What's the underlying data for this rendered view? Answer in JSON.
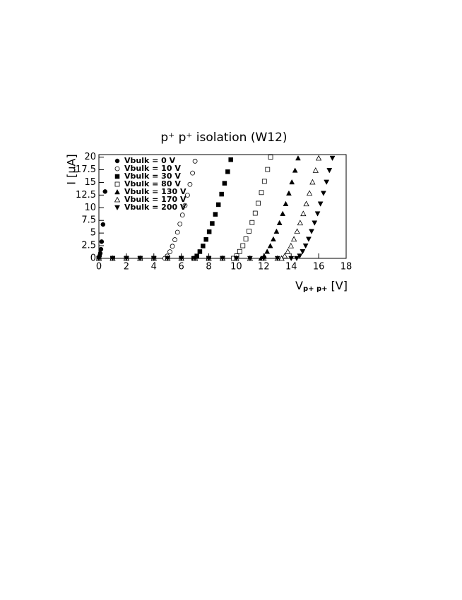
{
  "chart_data": {
    "type": "scatter",
    "title": "p⁺ p⁺ isolation (W12)",
    "xlabel": {
      "main": "V",
      "sub": "p+ p+",
      "unit": "[V]"
    },
    "ylabel": "I [μA]",
    "xlim": [
      0,
      18
    ],
    "ylim": [
      0,
      20.5
    ],
    "xticks": [
      0,
      2,
      4,
      6,
      8,
      10,
      12,
      14,
      16,
      18
    ],
    "yticks": [
      0,
      2.5,
      5,
      7.5,
      10,
      12.5,
      15,
      17.5,
      20
    ],
    "legend": "top-left",
    "series": [
      {
        "name": "Vbulk = 0 V",
        "marker": "circle",
        "color": "#000000",
        "x": [
          0,
          0.05,
          0.1,
          0.15,
          0.2,
          0.3,
          0.45
        ],
        "values": [
          0,
          0.5,
          1,
          1.8,
          3.3,
          6.7,
          13.2
        ]
      },
      {
        "name": "Vbulk = 10 V",
        "marker": "circle-open",
        "color": "#000000",
        "x": [
          0,
          1,
          2,
          3,
          4,
          4.8,
          4.98,
          5.17,
          5.35,
          5.53,
          5.72,
          5.9,
          6.08,
          6.27,
          6.45,
          6.63,
          6.82,
          7.0
        ],
        "values": [
          0,
          0,
          0,
          0,
          0,
          0,
          0.46,
          1.31,
          2.4,
          3.69,
          5.16,
          6.8,
          8.56,
          10.44,
          12.48,
          14.61,
          16.86,
          19.2
        ]
      },
      {
        "name": "Vbulk = 30 V",
        "marker": "square",
        "color": "#000000",
        "x": [
          0,
          1,
          2,
          3,
          4,
          5,
          6,
          6.9,
          7.13,
          7.35,
          7.58,
          7.8,
          8.03,
          8.25,
          8.48,
          8.7,
          8.93,
          9.15,
          9.38,
          9.6
        ],
        "values": [
          0,
          0,
          0,
          0,
          0,
          0,
          0,
          0,
          0.47,
          1.33,
          2.44,
          3.74,
          5.25,
          6.9,
          8.7,
          10.61,
          12.68,
          14.84,
          17.12,
          19.5
        ]
      },
      {
        "name": "Vbulk = 80 V",
        "marker": "square-open",
        "color": "#000000",
        "x": [
          0,
          1,
          2,
          3,
          4,
          5,
          6,
          7,
          8,
          9,
          9.8,
          10.03,
          10.25,
          10.48,
          10.7,
          10.93,
          11.15,
          11.38,
          11.6,
          11.83,
          12.05,
          12.28,
          12.5
        ],
        "values": [
          0,
          0,
          0,
          0,
          0,
          0,
          0,
          0,
          0,
          0,
          0,
          0.48,
          1.36,
          2.5,
          3.84,
          5.38,
          7.08,
          8.92,
          10.88,
          13,
          15.22,
          17.56,
          20
        ]
      },
      {
        "name": "Vbulk = 130 V",
        "marker": "triangle-up",
        "color": "#000000",
        "x": [
          0,
          1,
          2,
          3,
          4,
          5,
          6,
          7,
          8,
          9,
          10,
          11,
          11.8,
          12.03,
          12.25,
          12.48,
          12.7,
          12.93,
          13.15,
          13.38,
          13.6,
          13.83,
          14.05,
          14.28,
          14.5
        ],
        "values": [
          0,
          0,
          0,
          0,
          0,
          0,
          0,
          0,
          0,
          0,
          0,
          0,
          0,
          0.48,
          1.35,
          2.48,
          3.8,
          5.33,
          7.01,
          8.83,
          10.77,
          12.87,
          15.07,
          17.38,
          19.8
        ]
      },
      {
        "name": "Vbulk = 170 V",
        "marker": "triangle-up-open",
        "color": "#000000",
        "x": [
          0,
          1,
          2,
          3,
          4,
          5,
          6,
          7,
          8,
          9,
          10,
          11,
          12,
          13,
          13.3,
          13.53,
          13.75,
          13.98,
          14.2,
          14.43,
          14.65,
          14.88,
          15.1,
          15.33,
          15.55,
          15.78,
          16
        ],
        "values": [
          0,
          0,
          0,
          0,
          0,
          0,
          0,
          0,
          0,
          0,
          0,
          0,
          0,
          0,
          0,
          0.48,
          1.35,
          2.48,
          3.8,
          5.33,
          7.01,
          8.83,
          10.77,
          12.87,
          15.07,
          17.38,
          19.8
        ]
      },
      {
        "name": "Vbulk = 200 V",
        "marker": "triangle-down",
        "color": "#000000",
        "x": [
          0,
          1,
          2,
          3,
          4,
          5,
          6,
          7,
          8,
          9,
          10,
          11,
          12,
          13,
          14,
          14.4,
          14.62,
          14.83,
          15.05,
          15.27,
          15.48,
          15.7,
          15.92,
          16.13,
          16.35,
          16.57,
          16.78,
          17.0
        ],
        "values": [
          0,
          0,
          0,
          0,
          0,
          0,
          0,
          0,
          0,
          0,
          0,
          0,
          0,
          0,
          0,
          0,
          0.48,
          1.35,
          2.48,
          3.8,
          5.33,
          7.01,
          8.83,
          10.77,
          12.87,
          15.07,
          17.38,
          19.8
        ]
      }
    ]
  }
}
